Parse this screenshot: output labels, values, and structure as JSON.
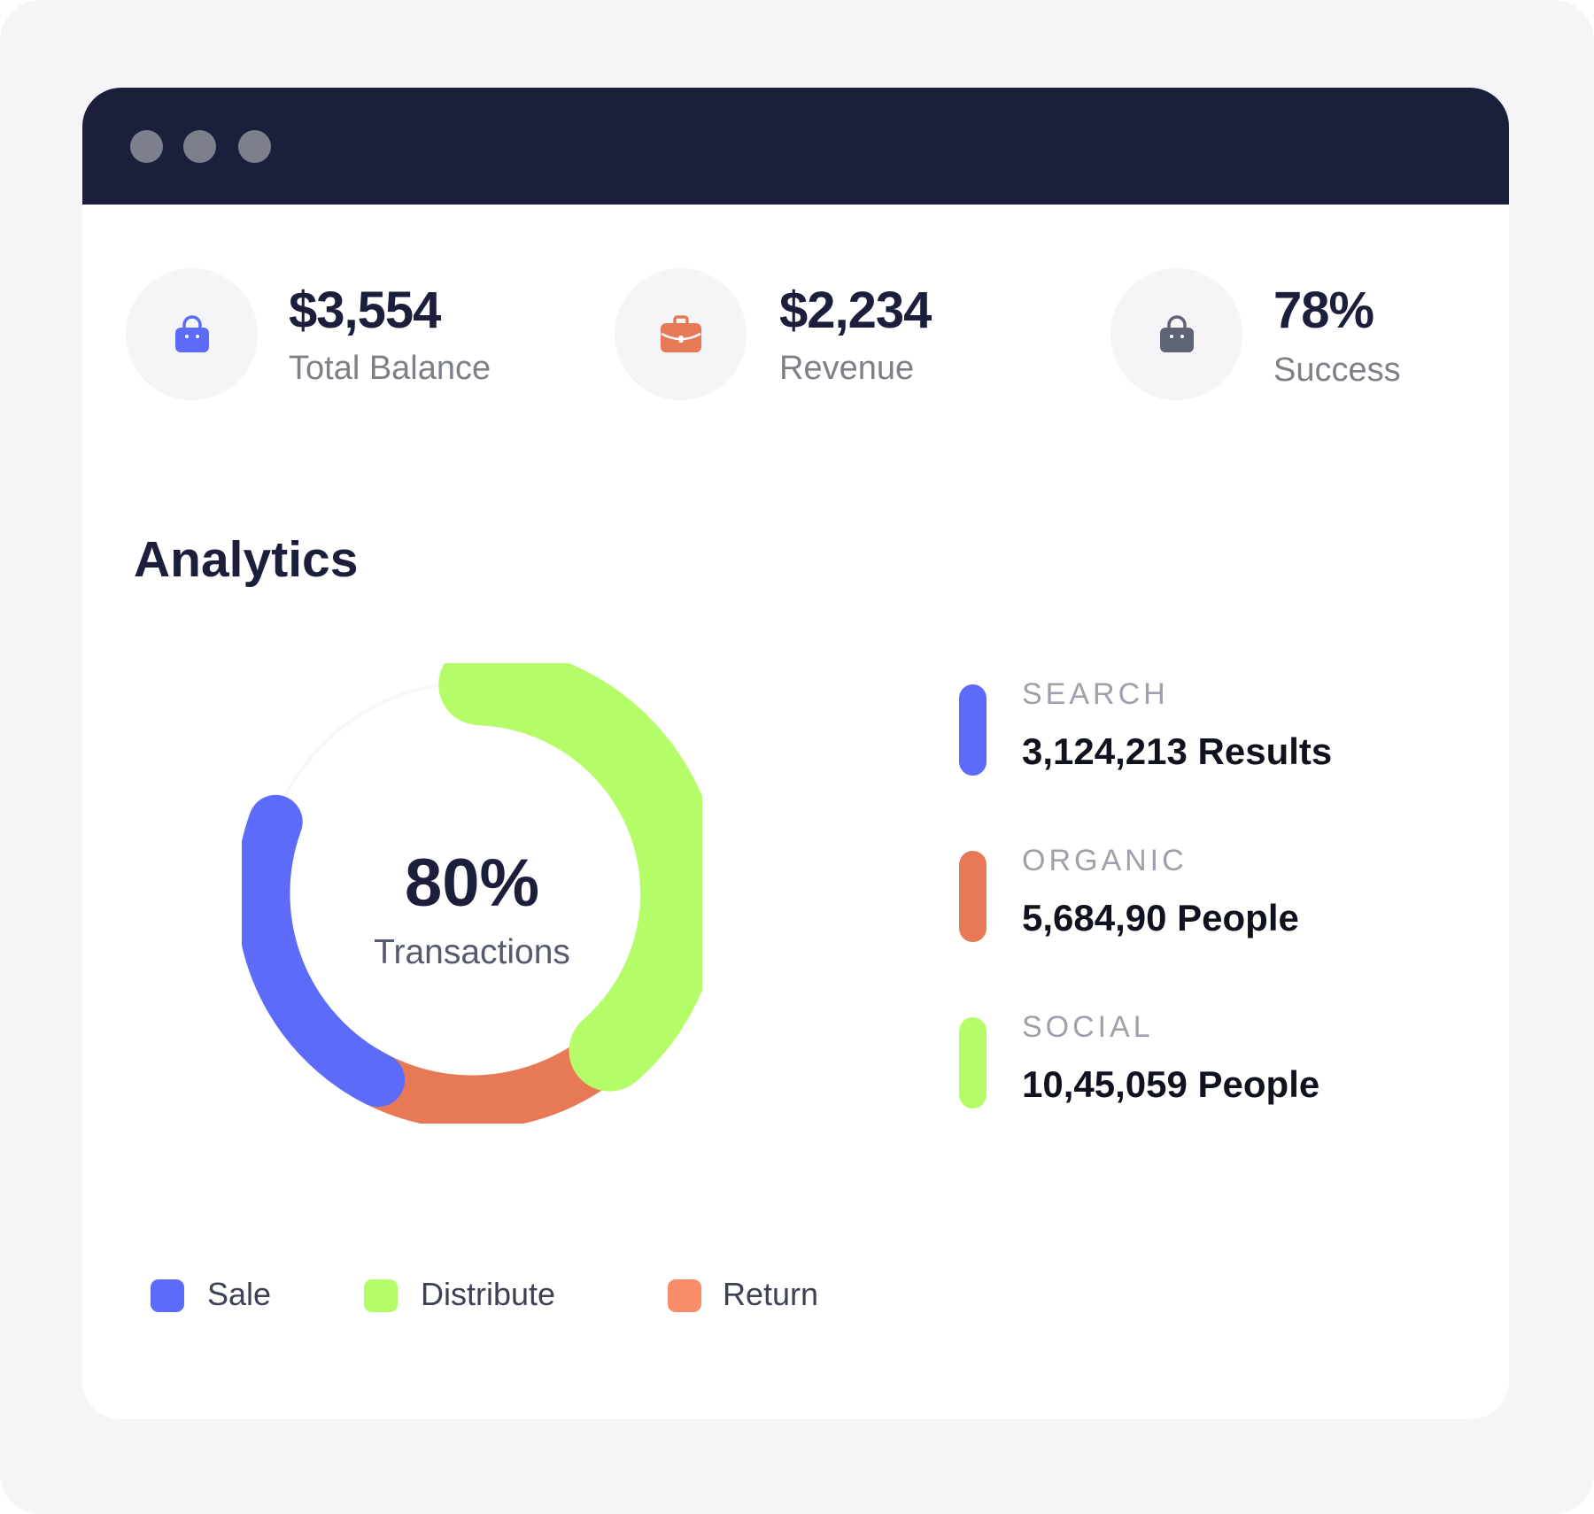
{
  "window": {
    "controls": [
      "close",
      "minimize",
      "maximize"
    ]
  },
  "stats": [
    {
      "value": "$3,554",
      "label": "Total Balance",
      "icon": "shopping-bag-icon",
      "icon_color": "#5d6bfb"
    },
    {
      "value": "$2,234",
      "label": "Revenue",
      "icon": "briefcase-icon",
      "icon_color": "#e87956"
    },
    {
      "value": "78%",
      "label": "Success",
      "icon": "shopping-bag-icon",
      "icon_color": "#5f6376"
    }
  ],
  "analytics": {
    "title": "Analytics",
    "donut_value": "80%",
    "donut_label": "Transactions"
  },
  "metrics": [
    {
      "name": "SEARCH",
      "value": "3,124,213 Results",
      "color": "#5d6bfb"
    },
    {
      "name": "ORGANIC",
      "value": "5,684,90 People",
      "color": "#e87956"
    },
    {
      "name": "SOCIAL",
      "value": "10,45,059 People",
      "color": "#b5fd68"
    }
  ],
  "legend": [
    {
      "label": "Sale",
      "color": "#5d6bfb"
    },
    {
      "label": "Distribute",
      "color": "#b5fd68"
    },
    {
      "label": "Return",
      "color": "#fb8c6a"
    }
  ],
  "chart_data": {
    "type": "pie",
    "categories": [
      "Sale",
      "Distribute",
      "Return"
    ],
    "values": [
      22,
      38,
      20
    ],
    "center_value": "80%",
    "center_label": "Transactions",
    "legend_position": "bottom"
  }
}
